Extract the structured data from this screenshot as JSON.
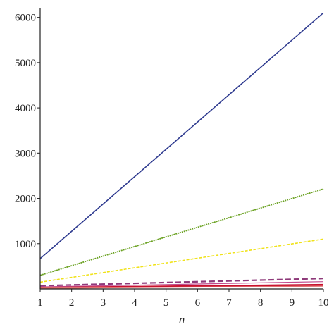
{
  "chart_data": {
    "type": "line",
    "title": "",
    "xlabel": "n",
    "ylabel": "",
    "xlim": [
      1,
      10
    ],
    "ylim": [
      0,
      6150
    ],
    "grid": false,
    "legend": "none",
    "x_ticks": [
      "1",
      "2",
      "3",
      "4",
      "5",
      "6",
      "7",
      "8",
      "9",
      "10"
    ],
    "y_ticks": [
      "1000",
      "2000",
      "3000",
      "4000",
      "5000",
      "6000"
    ],
    "x": [
      1,
      10
    ],
    "series": [
      {
        "values": [
          670,
          6100
        ],
        "color": "#2e3a8f",
        "dash": "solid",
        "width": 1.6
      },
      {
        "values": [
          300,
          2210
        ],
        "color": "#6aa121",
        "dash": "2,1",
        "width": 1.8
      },
      {
        "values": [
          150,
          1100
        ],
        "color": "#f0e21a",
        "dash": "4,2",
        "width": 1.6
      },
      {
        "values": [
          70,
          230
        ],
        "color": "#8e3a7a",
        "dash": "8,4",
        "width": 2.2
      },
      {
        "values": [
          45,
          160
        ],
        "color": "#c04b8e",
        "dash": "solid",
        "width": 1.2
      },
      {
        "values": [
          25,
          90
        ],
        "color": "#c8102e",
        "dash": "solid",
        "width": 2.6
      },
      {
        "values": [
          15,
          60
        ],
        "color": "#e07070",
        "dash": "solid",
        "width": 1.4
      }
    ]
  }
}
